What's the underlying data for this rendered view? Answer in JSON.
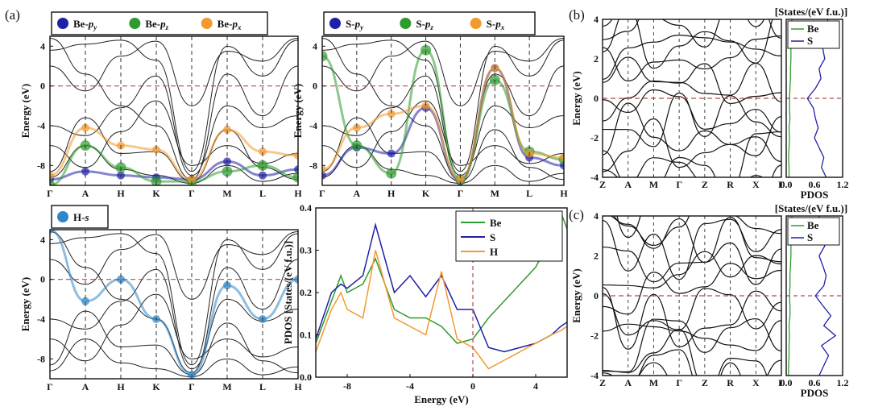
{
  "panel_labels": [
    "(a)",
    "(b)",
    "(c)"
  ],
  "colors": {
    "blue": "#1f1fa8",
    "green": "#2e9b2e",
    "orange": "#f29a2e",
    "lightblue": "#2f86c8",
    "fermi": "#b24a4a",
    "band": "#222222"
  },
  "chart_data": [
    {
      "id": "be-p-bands",
      "type": "line",
      "title": "",
      "ylabel": "Energy (eV)",
      "ylim": [
        -10,
        5
      ],
      "yticks": [
        "4",
        "0",
        "-4",
        "-8"
      ],
      "xticks": [
        "Γ",
        "A",
        "H",
        "K",
        "Γ",
        "M",
        "L",
        "H"
      ],
      "legend": [
        "Be-py",
        "Be-pz",
        "Be-px"
      ],
      "series": [
        {
          "name": "Be-py",
          "values": [
            -9.4,
            -8.6,
            -9.0,
            -9.2,
            -9.4,
            -7.6,
            -9.0,
            -8.4
          ]
        },
        {
          "name": "Be-pz",
          "values": [
            -10.0,
            -6.0,
            -8.2,
            -9.6,
            -9.6,
            -8.6,
            -8.0,
            -9.2
          ]
        },
        {
          "name": "Be-px",
          "values": [
            -9.0,
            -4.2,
            -6.0,
            -6.4,
            -9.4,
            -4.4,
            -6.6,
            -7.0
          ]
        }
      ]
    },
    {
      "id": "s-p-bands",
      "type": "line",
      "title": "",
      "ylabel": "Energy (eV)",
      "ylim": [
        -10,
        5
      ],
      "yticks": [
        "4",
        "0",
        "-4",
        "-8"
      ],
      "xticks": [
        "Γ",
        "A",
        "H",
        "K",
        "Γ",
        "M",
        "L",
        "H"
      ],
      "legend": [
        "S-py",
        "S-pz",
        "S-px"
      ],
      "series": [
        {
          "name": "S-py",
          "values": [
            -9.0,
            -6.2,
            -6.8,
            -2.2,
            -9.6,
            1.8,
            -7.2,
            -8.0
          ]
        },
        {
          "name": "S-pz",
          "values": [
            3.0,
            -6.0,
            -8.8,
            3.6,
            -9.4,
            0.6,
            -6.6,
            -7.4
          ]
        },
        {
          "name": "S-px",
          "values": [
            -8.4,
            -4.2,
            -2.8,
            -2.0,
            -9.4,
            1.8,
            -6.8,
            -7.2
          ]
        }
      ]
    },
    {
      "id": "h-s-bands",
      "type": "line",
      "title": "",
      "ylabel": "Energy (eV)",
      "ylim": [
        -10,
        5
      ],
      "yticks": [
        "4",
        "0",
        "-4",
        "-8"
      ],
      "xticks": [
        "Γ",
        "A",
        "H",
        "K",
        "Γ",
        "M",
        "L",
        "H"
      ],
      "legend": [
        "H-s"
      ],
      "series": [
        {
          "name": "H-s",
          "values": [
            5.0,
            -2.2,
            0.0,
            -4.0,
            -9.6,
            -0.6,
            -4.0,
            0.0
          ]
        }
      ]
    },
    {
      "id": "total-pdos",
      "type": "line",
      "title": "",
      "xlabel": "Energy (eV)",
      "ylabel": "PDOS [States/(eV f.u.)]",
      "xlim": [
        -10,
        6
      ],
      "ylim": [
        0,
        0.4
      ],
      "xticks": [
        "-8",
        "-4",
        "0",
        "4"
      ],
      "yticks": [
        "0.0",
        "0.1",
        "0.2",
        "0.3",
        "0.4"
      ],
      "x": [
        -10,
        -9,
        -8.4,
        -8,
        -7,
        -6.2,
        -5,
        -4,
        -3,
        -2,
        -1,
        0,
        1,
        2,
        3,
        4,
        5,
        5.6,
        6
      ],
      "series": [
        {
          "name": "Be",
          "values": [
            0.08,
            0.18,
            0.24,
            0.2,
            0.22,
            0.28,
            0.16,
            0.14,
            0.14,
            0.12,
            0.08,
            0.09,
            0.14,
            0.18,
            0.22,
            0.26,
            0.33,
            0.39,
            0.35
          ]
        },
        {
          "name": "S",
          "values": [
            0.09,
            0.2,
            0.22,
            0.21,
            0.24,
            0.36,
            0.2,
            0.24,
            0.19,
            0.24,
            0.16,
            0.16,
            0.07,
            0.06,
            0.07,
            0.08,
            0.1,
            0.12,
            0.13
          ]
        },
        {
          "name": "H",
          "values": [
            0.06,
            0.16,
            0.2,
            0.16,
            0.14,
            0.3,
            0.14,
            0.12,
            0.1,
            0.25,
            0.09,
            0.07,
            0.02,
            0.04,
            0.06,
            0.08,
            0.1,
            0.11,
            0.12
          ]
        }
      ]
    },
    {
      "id": "band-b",
      "type": "line",
      "title": "",
      "ylabel": "Energy (eV)",
      "ylim": [
        -4,
        4
      ],
      "yticks": [
        "4",
        "2",
        "0",
        "-2",
        "-4"
      ],
      "xticks": [
        "Z",
        "A",
        "M",
        "Γ",
        "Z",
        "R",
        "X",
        "Γ"
      ],
      "series_count": 14
    },
    {
      "id": "pdos-b",
      "type": "line",
      "title": "[States/(eV f.u.)]",
      "xlabel": "PDOS",
      "xlim": [
        0,
        1.2
      ],
      "xticks": [
        "0.0",
        "0.6",
        "1.2"
      ],
      "ylim": [
        -4,
        4
      ],
      "y": [
        -4,
        -3.5,
        -3,
        -2.5,
        -2,
        -1.5,
        -1,
        -0.5,
        0,
        0.5,
        1,
        1.5,
        2,
        2.5,
        3,
        3.5,
        4
      ],
      "series": [
        {
          "name": "Be",
          "values": [
            0.06,
            0.06,
            0.05,
            0.06,
            0.07,
            0.06,
            0.08,
            0.07,
            0.07,
            0.08,
            0.09,
            0.09,
            0.1,
            0.1,
            0.11,
            0.12,
            0.12
          ]
        },
        {
          "name": "S",
          "values": [
            0.85,
            0.75,
            0.8,
            0.7,
            0.6,
            0.68,
            0.62,
            0.58,
            0.45,
            0.62,
            0.74,
            0.7,
            0.82,
            0.78,
            0.86,
            0.9,
            0.88
          ]
        }
      ]
    },
    {
      "id": "band-c",
      "type": "line",
      "title": "",
      "ylabel": "Energy (eV)",
      "ylim": [
        -4,
        4
      ],
      "yticks": [
        "4",
        "2",
        "0",
        "-2",
        "-4"
      ],
      "xticks": [
        "Z",
        "A",
        "M",
        "Γ",
        "Z",
        "R",
        "X",
        "Γ"
      ],
      "series_count": 14
    },
    {
      "id": "pdos-c",
      "type": "line",
      "title": "[States/(eV f.u.)]",
      "xlabel": "PDOS",
      "xlim": [
        0,
        1.2
      ],
      "xticks": [
        "0.0",
        "0.6",
        "1.2"
      ],
      "ylim": [
        -4,
        4
      ],
      "y": [
        -4,
        -3.5,
        -3,
        -2.5,
        -2,
        -1.5,
        -1,
        -0.5,
        0,
        0.5,
        1,
        1.5,
        2,
        2.5,
        3,
        3.5,
        4
      ],
      "series": [
        {
          "name": "Be",
          "values": [
            0.05,
            0.05,
            0.06,
            0.06,
            0.07,
            0.06,
            0.08,
            0.08,
            0.07,
            0.08,
            0.08,
            0.09,
            0.1,
            0.1,
            0.11,
            0.12,
            0.12
          ]
        },
        {
          "name": "S",
          "values": [
            0.7,
            0.8,
            0.9,
            0.75,
            1.05,
            0.8,
            0.95,
            0.78,
            0.62,
            0.8,
            0.85,
            0.78,
            0.7,
            0.82,
            0.76,
            0.72,
            0.7
          ]
        }
      ]
    }
  ]
}
